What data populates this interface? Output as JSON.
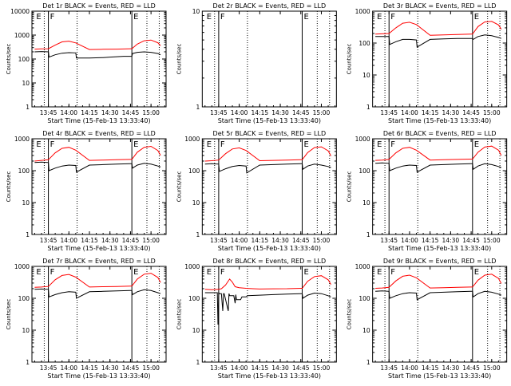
{
  "ylabel": "Counts/sec",
  "xlabel": "Start Time (15-Feb-13 13:33:40)",
  "x_ticks": [
    "13:45",
    "14:00",
    "14:15",
    "14:30",
    "14:45",
    "15:00"
  ],
  "y_ticks": [
    "1",
    "10",
    "100",
    "1000",
    "10000"
  ],
  "colors": {
    "events": "#000000",
    "lld": "#ff0000",
    "axis": "#000000"
  },
  "chart_data": [
    {
      "type": "line",
      "title": "Det 1r  BLACK = Events, RED = LLD",
      "ylim": [
        1,
        10000
      ],
      "yscale": "log",
      "x_unit": "minutes after 13:33:40",
      "flags": [
        {
          "label": "E",
          "x": 0
        },
        {
          "label": "F",
          "x": 10
        },
        {
          "label": "E",
          "x": 71
        }
      ],
      "solid_lines_x": [
        10,
        71
      ],
      "dotted_lines_x": [
        7,
        31,
        82,
        91
      ],
      "series": [
        {
          "name": "Events",
          "x": [
            0,
            5,
            10,
            10.5,
            15,
            20,
            25,
            30,
            30.5,
            40,
            50,
            55,
            60,
            65,
            70,
            71,
            71.5,
            75,
            80,
            85,
            90,
            92
          ],
          "values": [
            200,
            205,
            200,
            120,
            150,
            175,
            185,
            180,
            110,
            110,
            115,
            120,
            125,
            130,
            130,
            130,
            170,
            190,
            200,
            190,
            170,
            150
          ]
        },
        {
          "name": "LLD",
          "x": [
            0,
            5,
            10,
            15,
            20,
            25,
            30,
            40,
            50,
            60,
            70,
            71,
            75,
            80,
            85,
            90,
            92
          ],
          "values": [
            260,
            265,
            270,
            380,
            520,
            560,
            470,
            250,
            255,
            260,
            270,
            270,
            420,
            580,
            620,
            480,
            360
          ]
        }
      ]
    },
    {
      "type": "line",
      "title": "Det 2r  BLACK = Events, RED = LLD",
      "ylim": [
        1,
        10
      ],
      "yscale": "log",
      "x_unit": "minutes after 13:33:40",
      "flags": [
        {
          "label": "E",
          "x": 0
        },
        {
          "label": "F",
          "x": 10
        },
        {
          "label": "E",
          "x": 71
        }
      ],
      "solid_lines_x": [
        10,
        71
      ],
      "dotted_lines_x": [
        7,
        31,
        82,
        91
      ],
      "series": []
    },
    {
      "type": "line",
      "title": "Det 3r  BLACK = Events, RED = LLD",
      "ylim": [
        1,
        1000
      ],
      "yscale": "log",
      "x_unit": "minutes after 13:33:40",
      "flags": [
        {
          "label": "E",
          "x": 0
        },
        {
          "label": "F",
          "x": 10
        },
        {
          "label": "E",
          "x": 71
        }
      ],
      "solid_lines_x": [
        10,
        71
      ],
      "dotted_lines_x": [
        7,
        31,
        82,
        91
      ],
      "series": [
        {
          "name": "Events",
          "x": [
            0,
            5,
            10,
            10.5,
            15,
            20,
            25,
            30,
            30.5,
            40,
            50,
            60,
            70,
            71,
            71.5,
            75,
            80,
            85,
            90,
            92
          ],
          "values": [
            160,
            160,
            160,
            90,
            110,
            130,
            130,
            125,
            75,
            130,
            135,
            140,
            140,
            140,
            130,
            160,
            180,
            170,
            150,
            140
          ]
        },
        {
          "name": "LLD",
          "x": [
            0,
            5,
            10,
            15,
            20,
            25,
            30,
            40,
            50,
            60,
            70,
            71,
            75,
            80,
            85,
            90,
            92
          ],
          "values": [
            190,
            195,
            200,
            300,
            420,
            450,
            380,
            175,
            180,
            185,
            190,
            190,
            330,
            460,
            480,
            370,
            270
          ]
        }
      ]
    },
    {
      "type": "line",
      "title": "Det 4r  BLACK = Events, RED = LLD",
      "ylim": [
        1,
        1000
      ],
      "yscale": "log",
      "x_unit": "minutes after 13:33:40",
      "flags": [
        {
          "label": "E",
          "x": 0
        },
        {
          "label": "F",
          "x": 10
        },
        {
          "label": "E",
          "x": 71
        }
      ],
      "solid_lines_x": [
        10,
        71
      ],
      "dotted_lines_x": [
        7,
        31,
        82,
        91
      ],
      "series": [
        {
          "name": "Events",
          "x": [
            0,
            5,
            10,
            10.5,
            15,
            20,
            25,
            30,
            30.5,
            40,
            50,
            60,
            70,
            71,
            71.5,
            75,
            80,
            85,
            90,
            92
          ],
          "values": [
            180,
            185,
            180,
            100,
            120,
            140,
            150,
            145,
            90,
            150,
            155,
            160,
            165,
            165,
            120,
            150,
            170,
            160,
            140,
            130
          ]
        },
        {
          "name": "LLD",
          "x": [
            0,
            5,
            10,
            15,
            20,
            25,
            30,
            40,
            50,
            60,
            70,
            71,
            75,
            80,
            85,
            90,
            92
          ],
          "values": [
            200,
            210,
            220,
            360,
            500,
            540,
            440,
            210,
            215,
            220,
            225,
            225,
            380,
            540,
            580,
            430,
            300
          ]
        }
      ]
    },
    {
      "type": "line",
      "title": "Det 5r  BLACK = Events, RED = LLD",
      "ylim": [
        1,
        1000
      ],
      "yscale": "log",
      "x_unit": "minutes after 13:33:40",
      "flags": [
        {
          "label": "E",
          "x": 0
        },
        {
          "label": "F",
          "x": 10
        },
        {
          "label": "E",
          "x": 71
        }
      ],
      "solid_lines_x": [
        10,
        71
      ],
      "dotted_lines_x": [
        7,
        31,
        82,
        91
      ],
      "series": [
        {
          "name": "Events",
          "x": [
            0,
            5,
            10,
            10.5,
            15,
            20,
            25,
            30,
            30.5,
            40,
            50,
            60,
            70,
            71,
            71.5,
            75,
            80,
            85,
            90,
            92
          ],
          "values": [
            160,
            165,
            160,
            95,
            115,
            135,
            145,
            140,
            85,
            150,
            155,
            160,
            165,
            165,
            110,
            140,
            160,
            150,
            135,
            125
          ]
        },
        {
          "name": "LLD",
          "x": [
            0,
            5,
            10,
            15,
            20,
            25,
            30,
            40,
            50,
            60,
            70,
            71,
            75,
            80,
            85,
            90,
            92
          ],
          "values": [
            200,
            205,
            215,
            340,
            480,
            520,
            430,
            205,
            210,
            215,
            220,
            220,
            370,
            530,
            560,
            420,
            290
          ]
        }
      ]
    },
    {
      "type": "line",
      "title": "Det 6r  BLACK = Events, RED = LLD",
      "ylim": [
        1,
        1000
      ],
      "yscale": "log",
      "x_unit": "minutes after 13:33:40",
      "flags": [
        {
          "label": "E",
          "x": 0
        },
        {
          "label": "F",
          "x": 10
        },
        {
          "label": "E",
          "x": 71
        }
      ],
      "solid_lines_x": [
        10,
        71
      ],
      "dotted_lines_x": [
        7,
        31,
        82,
        91
      ],
      "series": [
        {
          "name": "Events",
          "x": [
            0,
            5,
            10,
            10.5,
            15,
            20,
            25,
            30,
            30.5,
            40,
            50,
            60,
            70,
            71,
            71.5,
            75,
            80,
            85,
            90,
            92
          ],
          "values": [
            170,
            175,
            170,
            100,
            120,
            140,
            150,
            145,
            90,
            150,
            155,
            160,
            165,
            165,
            110,
            140,
            165,
            155,
            135,
            125
          ]
        },
        {
          "name": "LLD",
          "x": [
            0,
            5,
            10,
            15,
            20,
            25,
            30,
            40,
            50,
            60,
            70,
            71,
            75,
            80,
            85,
            90,
            92
          ],
          "values": [
            210,
            215,
            225,
            360,
            500,
            540,
            440,
            215,
            220,
            225,
            230,
            230,
            380,
            550,
            590,
            440,
            300
          ]
        }
      ]
    },
    {
      "type": "line",
      "title": "Det 7r  BLACK = Events, RED = LLD",
      "ylim": [
        1,
        1000
      ],
      "yscale": "log",
      "x_unit": "minutes after 13:33:40",
      "flags": [
        {
          "label": "E",
          "x": 0
        },
        {
          "label": "F",
          "x": 10
        },
        {
          "label": "E",
          "x": 71
        }
      ],
      "solid_lines_x": [
        10,
        71
      ],
      "dotted_lines_x": [
        7,
        31,
        82,
        91
      ],
      "series": [
        {
          "name": "Events",
          "x": [
            0,
            5,
            10,
            10.5,
            15,
            20,
            25,
            30,
            30.5,
            40,
            50,
            60,
            70,
            71,
            71.5,
            75,
            80,
            85,
            90,
            92
          ],
          "values": [
            190,
            195,
            190,
            110,
            130,
            150,
            160,
            155,
            100,
            160,
            165,
            170,
            175,
            175,
            130,
            160,
            185,
            175,
            150,
            140
          ]
        },
        {
          "name": "LLD",
          "x": [
            0,
            5,
            10,
            15,
            20,
            25,
            30,
            40,
            50,
            60,
            70,
            71,
            75,
            80,
            85,
            90,
            92
          ],
          "values": [
            220,
            225,
            235,
            380,
            520,
            560,
            460,
            225,
            230,
            235,
            240,
            240,
            400,
            570,
            610,
            450,
            310
          ]
        }
      ]
    },
    {
      "type": "line",
      "title": "Det 8r  BLACK = Events, RED = LLD",
      "ylim": [
        1,
        1000
      ],
      "yscale": "log",
      "x_unit": "minutes after 13:33:40",
      "flags": [
        {
          "label": "E",
          "x": 0
        },
        {
          "label": "F",
          "x": 10
        },
        {
          "label": "E",
          "x": 71
        }
      ],
      "solid_lines_x": [
        10,
        71
      ],
      "dotted_lines_x": [
        7,
        31,
        82,
        91
      ],
      "series": [
        {
          "name": "Events",
          "x": [
            0,
            5,
            9,
            9.5,
            10,
            10.5,
            12,
            13,
            13.5,
            14,
            17,
            17.5,
            18,
            21,
            22,
            22.5,
            23,
            26,
            27,
            30,
            31,
            40,
            50,
            60,
            70,
            71,
            71.5,
            75,
            80,
            85,
            90,
            92
          ],
          "values": [
            150,
            150,
            150,
            15,
            150,
            140,
            140,
            40,
            140,
            140,
            40,
            140,
            120,
            120,
            70,
            130,
            90,
            90,
            110,
            110,
            120,
            125,
            130,
            135,
            140,
            140,
            100,
            125,
            145,
            140,
            120,
            110
          ]
        },
        {
          "name": "LLD",
          "x": [
            0,
            5,
            10,
            12,
            15,
            18,
            20,
            22,
            25,
            30,
            35,
            40,
            50,
            60,
            70,
            71,
            75,
            80,
            85,
            90,
            92
          ],
          "values": [
            190,
            185,
            190,
            200,
            260,
            400,
            320,
            230,
            215,
            205,
            200,
            195,
            198,
            200,
            205,
            205,
            340,
            480,
            510,
            380,
            270
          ]
        }
      ]
    },
    {
      "type": "line",
      "title": "Det 9r  BLACK = Events, RED = LLD",
      "ylim": [
        1,
        1000
      ],
      "yscale": "log",
      "x_unit": "minutes after 13:33:40",
      "flags": [
        {
          "label": "E",
          "x": 0
        },
        {
          "label": "F",
          "x": 10
        },
        {
          "label": "E",
          "x": 71
        }
      ],
      "solid_lines_x": [
        10,
        71
      ],
      "dotted_lines_x": [
        7,
        31,
        82,
        91
      ],
      "series": [
        {
          "name": "Events",
          "x": [
            0,
            5,
            10,
            10.5,
            15,
            20,
            25,
            30,
            30.5,
            40,
            50,
            60,
            70,
            71,
            71.5,
            75,
            80,
            85,
            90,
            92
          ],
          "values": [
            165,
            170,
            165,
            100,
            120,
            140,
            150,
            145,
            90,
            150,
            155,
            160,
            165,
            165,
            110,
            140,
            165,
            155,
            135,
            125
          ]
        },
        {
          "name": "LLD",
          "x": [
            0,
            5,
            10,
            15,
            20,
            25,
            30,
            40,
            50,
            60,
            70,
            71,
            75,
            80,
            85,
            90,
            92
          ],
          "values": [
            205,
            210,
            220,
            350,
            490,
            530,
            440,
            210,
            215,
            220,
            225,
            225,
            370,
            530,
            570,
            420,
            290
          ]
        }
      ]
    }
  ]
}
